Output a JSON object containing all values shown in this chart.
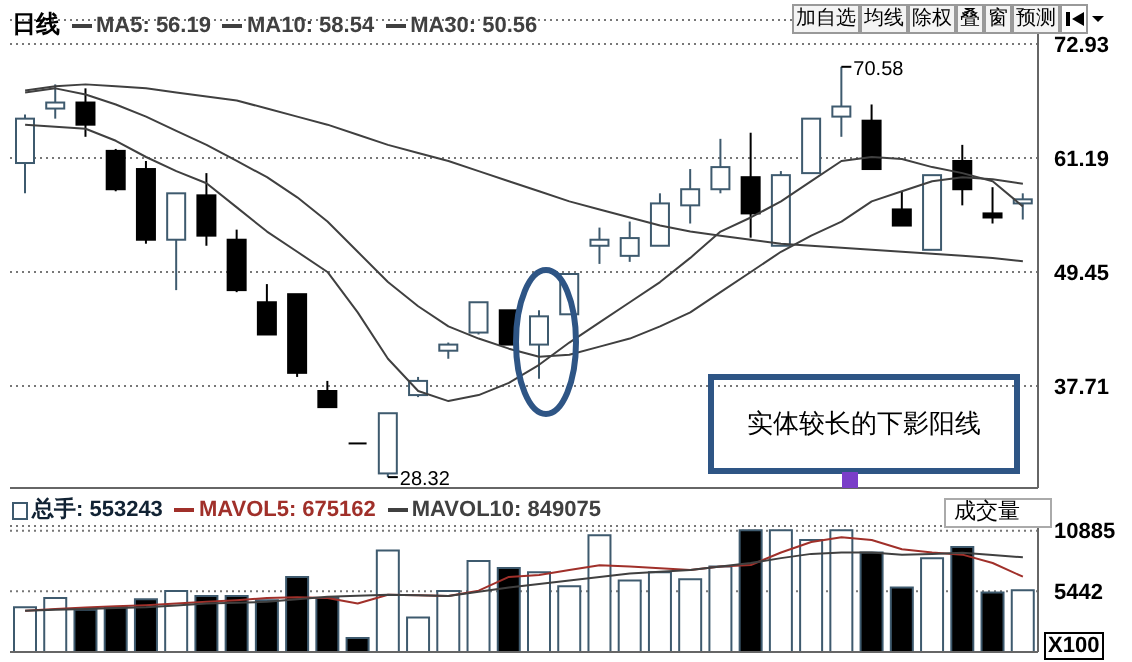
{
  "chart_data": [
    {
      "type": "candlestick",
      "title": "日线",
      "categories": [
        null,
        null,
        null,
        null,
        null,
        null,
        null,
        null,
        null,
        null,
        null,
        null,
        null,
        null,
        null,
        null,
        null,
        null,
        null,
        null,
        null,
        null,
        null,
        null,
        null,
        null,
        null,
        null,
        null,
        null,
        null,
        null,
        null,
        null
      ],
      "ohlc": [
        [
          60.67,
          65.66,
          57.55,
          65.24
        ],
        [
          66.28,
          68.77,
          65.24,
          66.9
        ],
        [
          66.9,
          68.36,
          63.37,
          64.62
        ],
        [
          61.92,
          62.12,
          57.76,
          57.97
        ],
        [
          60.05,
          60.88,
          52.36,
          52.77
        ],
        [
          52.77,
          57.55,
          47.58,
          57.55
        ],
        [
          57.34,
          59.63,
          52.15,
          53.19
        ],
        [
          52.77,
          53.81,
          47.37,
          47.58
        ],
        [
          46.33,
          48.2,
          43.01,
          43.01
        ],
        [
          47.16,
          47.16,
          38.64,
          39.06
        ],
        [
          37.19,
          38.23,
          35.53,
          35.53
        ],
        [
          31.79,
          31.79,
          31.79,
          31.79
        ],
        [
          28.7,
          34.9,
          28.32,
          34.9
        ],
        [
          36.77,
          38.64,
          36.56,
          38.23
        ],
        [
          41.34,
          42.18,
          40.51,
          41.97
        ],
        [
          43.21,
          46.33,
          43.01,
          46.33
        ],
        [
          45.5,
          45.5,
          41.97,
          41.97
        ],
        [
          41.97,
          45.5,
          38.44,
          44.88
        ],
        [
          45.09,
          49.24,
          45.09,
          49.24
        ],
        [
          52.15,
          54.02,
          50.28,
          52.77
        ],
        [
          51.11,
          54.64,
          50.49,
          52.94
        ],
        [
          52.15,
          57.55,
          52.15,
          56.51
        ],
        [
          56.31,
          60.05,
          54.44,
          57.97
        ],
        [
          57.97,
          63.16,
          57.55,
          60.25
        ],
        [
          59.21,
          63.79,
          52.98,
          55.48
        ],
        [
          52.15,
          59.84,
          52.15,
          59.42
        ],
        [
          59.63,
          65.24,
          59.63,
          65.24
        ],
        [
          65.45,
          70.58,
          63.37,
          66.49
        ],
        [
          65.03,
          66.7,
          60.05,
          60.05
        ],
        [
          55.89,
          57.76,
          54.23,
          54.23
        ],
        [
          51.73,
          59.42,
          51.73,
          59.42
        ],
        [
          60.88,
          62.54,
          56.31,
          57.97
        ],
        [
          55.48,
          58.18,
          54.44,
          55.06
        ],
        [
          56.51,
          57.55,
          54.85,
          56.93
        ]
      ],
      "colors": [
        "#ffffff",
        "#ffffff",
        "#000000",
        "#000000",
        "#000000",
        "#ffffff",
        "#000000",
        "#000000",
        "#000000",
        "#000000",
        "#000000",
        "#000000",
        "#ffffff",
        "#ffffff",
        "#ffffff",
        "#ffffff",
        "#000000",
        "#ffffff",
        "#ffffff",
        "#ffffff",
        "#ffffff",
        "#ffffff",
        "#ffffff",
        "#ffffff",
        "#000000",
        "#ffffff",
        "#ffffff",
        "#ffffff",
        "#000000",
        "#000000",
        "#ffffff",
        "#000000",
        "#000000",
        "#ffffff"
      ],
      "series": [
        {
          "name": "MA5: 56.19",
          "type": "line",
          "color": "#404040",
          "values": [
            64.62,
            64.41,
            64.2,
            62.96,
            61.29,
            59.84,
            58.59,
            56.1,
            53.61,
            51.53,
            49.45,
            45.29,
            40.51,
            37.19,
            36.15,
            36.77,
            38.02,
            39.89,
            42.18,
            44.25,
            46.33,
            48.41,
            50.9,
            53.61,
            55.06,
            56.72,
            58.8,
            60.88,
            61.29,
            61.08,
            60.25,
            59.63,
            58.8,
            56.19
          ]
        },
        {
          "name": "MA10: 58.54",
          "type": "line",
          "color": "#404040",
          "values": [
            67.94,
            68.36,
            67.73,
            66.7,
            65.45,
            63.99,
            62.54,
            60.88,
            59.21,
            57.14,
            54.64,
            51.53,
            48.41,
            45.92,
            43.84,
            42.59,
            41.55,
            40.72,
            40.93,
            41.76,
            42.59,
            43.84,
            45.29,
            47.37,
            49.45,
            51.53,
            53.19,
            54.64,
            56.72,
            57.76,
            58.8,
            59.21,
            59.0,
            58.54
          ]
        },
        {
          "name": "MA30: 50.56",
          "type": "line",
          "color": "#404040",
          "values": [
            68.15,
            68.57,
            68.77,
            68.57,
            68.36,
            67.94,
            67.53,
            67.11,
            66.28,
            65.45,
            64.62,
            63.58,
            62.54,
            61.71,
            60.88,
            59.84,
            58.8,
            57.76,
            56.72,
            55.89,
            55.06,
            54.23,
            53.61,
            53.19,
            52.77,
            52.36,
            52.15,
            51.94,
            51.73,
            51.53,
            51.32,
            51.11,
            50.9,
            50.56
          ]
        }
      ],
      "ylim": [
        27.2,
        75.4
      ],
      "yticks": [
        72.93,
        61.19,
        49.45,
        37.71
      ],
      "grid": "y",
      "legend": "top left",
      "marker": "none",
      "line_style": "solid",
      "annotations": [
        "加自选",
        "均线",
        "除权",
        "叠",
        "窗",
        "预测",
        "实体较长的下影阳线",
        "70.58",
        "28.32"
      ]
    },
    {
      "type": "bar",
      "categories": [
        null,
        null,
        null,
        null,
        null,
        null,
        null,
        null,
        null,
        null,
        null,
        null,
        null,
        null,
        null,
        null,
        null,
        null,
        null,
        null,
        null,
        null,
        null,
        null,
        null,
        null,
        null,
        null,
        null,
        null,
        null,
        null,
        null,
        null
      ],
      "series": [
        {
          "name": "总手: 553243",
          "type": "bar",
          "colors": [
            "#ffffff",
            "#ffffff",
            "#000000",
            "#000000",
            "#000000",
            "#ffffff",
            "#000000",
            "#000000",
            "#000000",
            "#000000",
            "#000000",
            "#000000",
            "#ffffff",
            "#ffffff",
            "#ffffff",
            "#ffffff",
            "#000000",
            "#ffffff",
            "#ffffff",
            "#ffffff",
            "#ffffff",
            "#ffffff",
            "#ffffff",
            "#ffffff",
            "#000000",
            "#ffffff",
            "#ffffff",
            "#ffffff",
            "#000000",
            "#000000",
            "#ffffff",
            "#000000",
            "#000000",
            "#ffffff"
          ],
          "values": [
            4020,
            4850,
            3780,
            4020,
            4720,
            5460,
            5020,
            5020,
            4650,
            6730,
            4850,
            1260,
            9110,
            3090,
            5460,
            8170,
            7530,
            7160,
            5900,
            10480,
            6410,
            7160,
            6530,
            7660,
            10920,
            10920,
            10040,
            10920,
            8920,
            5780,
            8410,
            9410,
            5340,
            5532
          ]
        },
        {
          "name": "MAVOL5: 675162",
          "type": "line",
          "color": "#a0302a",
          "values": [
            3700,
            3850,
            4000,
            4100,
            4200,
            4350,
            4500,
            4650,
            4850,
            4900,
            4850,
            4350,
            5130,
            5080,
            5020,
            5500,
            6730,
            6900,
            7350,
            7790,
            7660,
            7500,
            7350,
            7660,
            7800,
            8920,
            9860,
            10300,
            10040,
            9220,
            8920,
            8730,
            7980,
            6752
          ]
        },
        {
          "name": "MAVOL10: 849075",
          "type": "line",
          "color": "#404040",
          "values": [
            3700,
            3780,
            3860,
            3940,
            4020,
            4180,
            4350,
            4420,
            4500,
            4720,
            4950,
            5040,
            5130,
            5080,
            5020,
            5400,
            5780,
            6100,
            6410,
            6720,
            7040,
            7200,
            7350,
            7660,
            7980,
            8420,
            8800,
            8920,
            8920,
            8730,
            8800,
            8900,
            8700,
            8491
          ]
        }
      ],
      "ylim": [
        0,
        11300
      ],
      "yticks": [
        5442,
        10885
      ],
      "grid": "y",
      "legend": "top left",
      "marker": "none",
      "line_style": "solid",
      "annotations": [
        "成交量",
        "X100"
      ]
    }
  ]
}
